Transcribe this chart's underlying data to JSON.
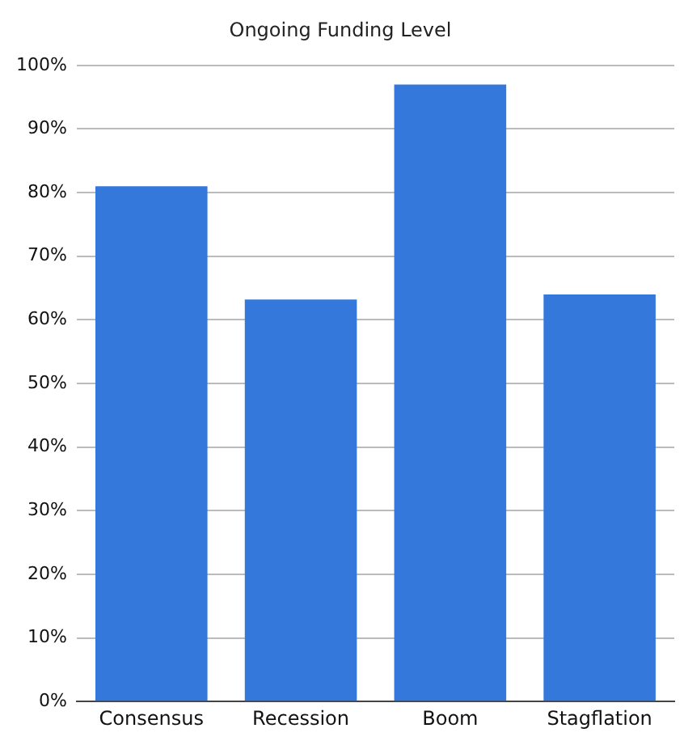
{
  "chart_data": {
    "type": "bar",
    "title": "Ongoing Funding Level",
    "categories": [
      "Consensus",
      "Recession",
      "Boom",
      "Stagflation"
    ],
    "values": [
      81,
      63.2,
      97,
      64
    ],
    "color": "#3478dc",
    "ylim": [
      0,
      100
    ],
    "yticks": [
      {
        "value": 0,
        "label": "0%"
      },
      {
        "value": 10,
        "label": "10%"
      },
      {
        "value": 20,
        "label": "20%"
      },
      {
        "value": 30,
        "label": "30%"
      },
      {
        "value": 40,
        "label": "40%"
      },
      {
        "value": 50,
        "label": "50%"
      },
      {
        "value": 60,
        "label": "60%"
      },
      {
        "value": 70,
        "label": "70%"
      },
      {
        "value": 80,
        "label": "80%"
      },
      {
        "value": 90,
        "label": "90%"
      },
      {
        "value": 100,
        "label": "100%"
      }
    ],
    "grid": "y",
    "legend": false
  }
}
